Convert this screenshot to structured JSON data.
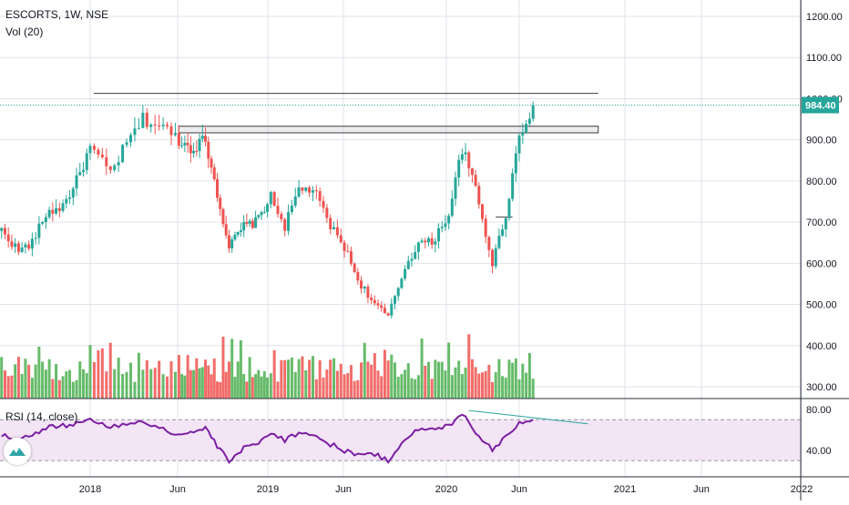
{
  "header": {
    "title": "ESCORTS, 1W, NSE",
    "volume_label": "Vol (20)"
  },
  "rsi": {
    "label": "RSI (14, close)",
    "band_upper": 70,
    "band_lower": 30
  },
  "price_badge": {
    "value": "984.40",
    "color": "#26a69a"
  },
  "colors": {
    "up": "#26a69a",
    "down": "#ef5350",
    "vol_up": "#4caf50",
    "vol_down": "#ef5350",
    "rsi_line": "#7b1fa2",
    "rsi_band": "#f3e5f5",
    "grid": "#e0e3eb"
  },
  "axes": {
    "price_ticks": [
      "1200.00",
      "1100.00",
      "1000.00",
      "900.00",
      "800.00",
      "700.00",
      "600.00",
      "500.00",
      "400.00",
      "300.00"
    ],
    "rsi_ticks": [
      "80.00",
      "40.00"
    ],
    "x_ticks": [
      "2018",
      "Jun",
      "2019",
      "Jun",
      "2020",
      "Jun",
      "2021",
      "Jun",
      "2022"
    ]
  },
  "chart_data": {
    "type": "candlestick",
    "symbol": "ESCORTS",
    "interval": "1W",
    "exchange": "NSE",
    "x_range": [
      "2017-07",
      "2022-01"
    ],
    "price_range": [
      275,
      1235
    ],
    "last_price": 984.4,
    "weekly_close_path": [
      {
        "date": "2017-07-03",
        "close": 680
      },
      {
        "date": "2017-08-07",
        "close": 630
      },
      {
        "date": "2017-09-04",
        "close": 650
      },
      {
        "date": "2017-10-02",
        "close": 720
      },
      {
        "date": "2017-11-06",
        "close": 740
      },
      {
        "date": "2017-12-04",
        "close": 800
      },
      {
        "date": "2018-01-01",
        "close": 880
      },
      {
        "date": "2018-02-05",
        "close": 820
      },
      {
        "date": "2018-03-05",
        "close": 890
      },
      {
        "date": "2018-04-02",
        "close": 950
      },
      {
        "date": "2018-05-07",
        "close": 930
      },
      {
        "date": "2018-06-04",
        "close": 900
      },
      {
        "date": "2018-07-02",
        "close": 880
      },
      {
        "date": "2018-08-06",
        "close": 900
      },
      {
        "date": "2018-09-03",
        "close": 770
      },
      {
        "date": "2018-10-01",
        "close": 640
      },
      {
        "date": "2018-11-05",
        "close": 690
      },
      {
        "date": "2018-12-03",
        "close": 700
      },
      {
        "date": "2019-01-07",
        "close": 760
      },
      {
        "date": "2019-02-04",
        "close": 690
      },
      {
        "date": "2019-03-04",
        "close": 780
      },
      {
        "date": "2019-04-01",
        "close": 780
      },
      {
        "date": "2019-05-06",
        "close": 690
      },
      {
        "date": "2019-06-03",
        "close": 640
      },
      {
        "date": "2019-07-01",
        "close": 560
      },
      {
        "date": "2019-08-05",
        "close": 500
      },
      {
        "date": "2019-09-02",
        "close": 470
      },
      {
        "date": "2019-10-07",
        "close": 590
      },
      {
        "date": "2019-11-04",
        "close": 650
      },
      {
        "date": "2019-12-02",
        "close": 650
      },
      {
        "date": "2020-01-06",
        "close": 720
      },
      {
        "date": "2020-02-03",
        "close": 880
      },
      {
        "date": "2020-03-02",
        "close": 780
      },
      {
        "date": "2020-04-06",
        "close": 600
      },
      {
        "date": "2020-05-04",
        "close": 720
      },
      {
        "date": "2020-06-01",
        "close": 910
      },
      {
        "date": "2020-06-29",
        "close": 984.4
      }
    ],
    "volume_range": [
      0,
      1
    ],
    "rsi_range": [
      25,
      85
    ],
    "rsi": [
      {
        "date": "2017-07-03",
        "value": 56
      },
      {
        "date": "2017-08-07",
        "value": 50
      },
      {
        "date": "2017-09-04",
        "value": 55
      },
      {
        "date": "2017-10-02",
        "value": 62
      },
      {
        "date": "2017-11-06",
        "value": 64
      },
      {
        "date": "2017-12-04",
        "value": 67
      },
      {
        "date": "2018-01-01",
        "value": 70
      },
      {
        "date": "2018-02-05",
        "value": 62
      },
      {
        "date": "2018-03-05",
        "value": 66
      },
      {
        "date": "2018-04-02",
        "value": 69
      },
      {
        "date": "2018-05-07",
        "value": 60
      },
      {
        "date": "2018-06-04",
        "value": 56
      },
      {
        "date": "2018-07-02",
        "value": 57
      },
      {
        "date": "2018-08-06",
        "value": 62
      },
      {
        "date": "2018-09-03",
        "value": 44
      },
      {
        "date": "2018-10-01",
        "value": 29
      },
      {
        "date": "2018-11-05",
        "value": 42
      },
      {
        "date": "2018-12-03",
        "value": 46
      },
      {
        "date": "2019-01-07",
        "value": 58
      },
      {
        "date": "2019-02-04",
        "value": 50
      },
      {
        "date": "2019-03-04",
        "value": 58
      },
      {
        "date": "2019-04-01",
        "value": 55
      },
      {
        "date": "2019-05-06",
        "value": 46
      },
      {
        "date": "2019-06-03",
        "value": 40
      },
      {
        "date": "2019-07-01",
        "value": 36
      },
      {
        "date": "2019-08-05",
        "value": 36
      },
      {
        "date": "2019-09-02",
        "value": 30
      },
      {
        "date": "2019-10-07",
        "value": 52
      },
      {
        "date": "2019-11-04",
        "value": 60
      },
      {
        "date": "2019-12-02",
        "value": 60
      },
      {
        "date": "2020-01-06",
        "value": 64
      },
      {
        "date": "2020-02-03",
        "value": 77
      },
      {
        "date": "2020-03-02",
        "value": 58
      },
      {
        "date": "2020-04-06",
        "value": 41
      },
      {
        "date": "2020-05-04",
        "value": 53
      },
      {
        "date": "2020-06-01",
        "value": 68
      },
      {
        "date": "2020-06-29",
        "value": 70
      }
    ],
    "drawings": [
      {
        "type": "horizontal_line",
        "price": 1013,
        "from": "2018-01-07",
        "to": "2020-11-08"
      },
      {
        "type": "horizontal_zone",
        "price_top": 933,
        "price_bottom": 917,
        "from": "2018-06-04",
        "to": "2020-11-08"
      },
      {
        "type": "horizontal_line",
        "price": 712,
        "from": "2020-04-13",
        "to": "2020-05-18"
      },
      {
        "type": "rsi_trendline",
        "from": {
          "date": "2020-02-17",
          "value": 79
        },
        "to": {
          "date": "2020-10-18",
          "value": 66
        }
      }
    ]
  }
}
